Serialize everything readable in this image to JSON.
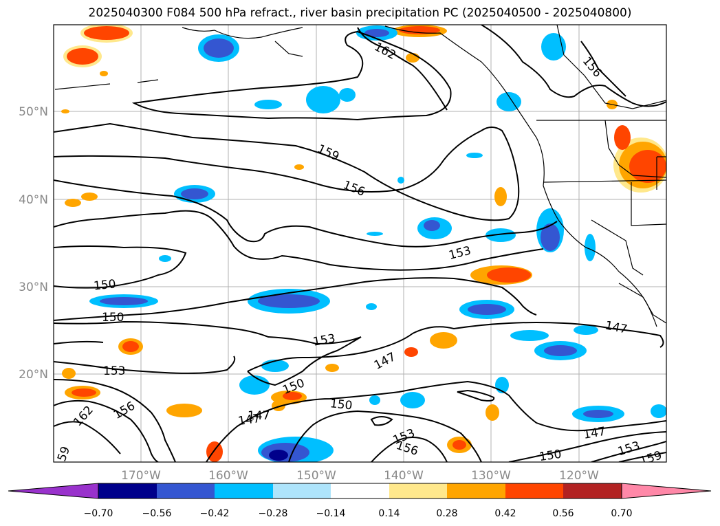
{
  "title": "2025040300 F084 500 hPa refract., river basin precipitation PC (2025040500 - 2025040800)",
  "lat_labels": [
    "50°N",
    "40°N",
    "30°N",
    "20°N"
  ],
  "lon_labels": [
    "170°W",
    "160°W",
    "150°W",
    "140°W",
    "130°W",
    "120°W"
  ],
  "contour_labels": [
    "162",
    "156",
    "159",
    "156",
    "153",
    "150",
    "150",
    "153",
    "147",
    "153",
    "150",
    "150",
    "147",
    "162",
    "156",
    "147",
    "153",
    "156",
    "147",
    "150",
    "147",
    "153",
    "159",
    "59"
  ],
  "colorbar": {
    "ticks": [
      "−0.70",
      "−0.56",
      "−0.42",
      "−0.28",
      "−0.14",
      "0.14",
      "0.28",
      "0.42",
      "0.56",
      "0.70"
    ],
    "colors": [
      "#9932cc",
      "#00008b",
      "#3456d1",
      "#00bfff",
      "#aee4fb",
      "#ffffff",
      "#ffe88c",
      "#ffa500",
      "#ff4500",
      "#b22222",
      "#ff88a8"
    ]
  },
  "colors": {
    "strong_neg": "#3456d1",
    "neg": "#00bfff",
    "weak_neg": "#aee4fb",
    "weak_pos": "#ffe88c",
    "pos": "#ffa500",
    "strong_pos": "#ff4500"
  }
}
